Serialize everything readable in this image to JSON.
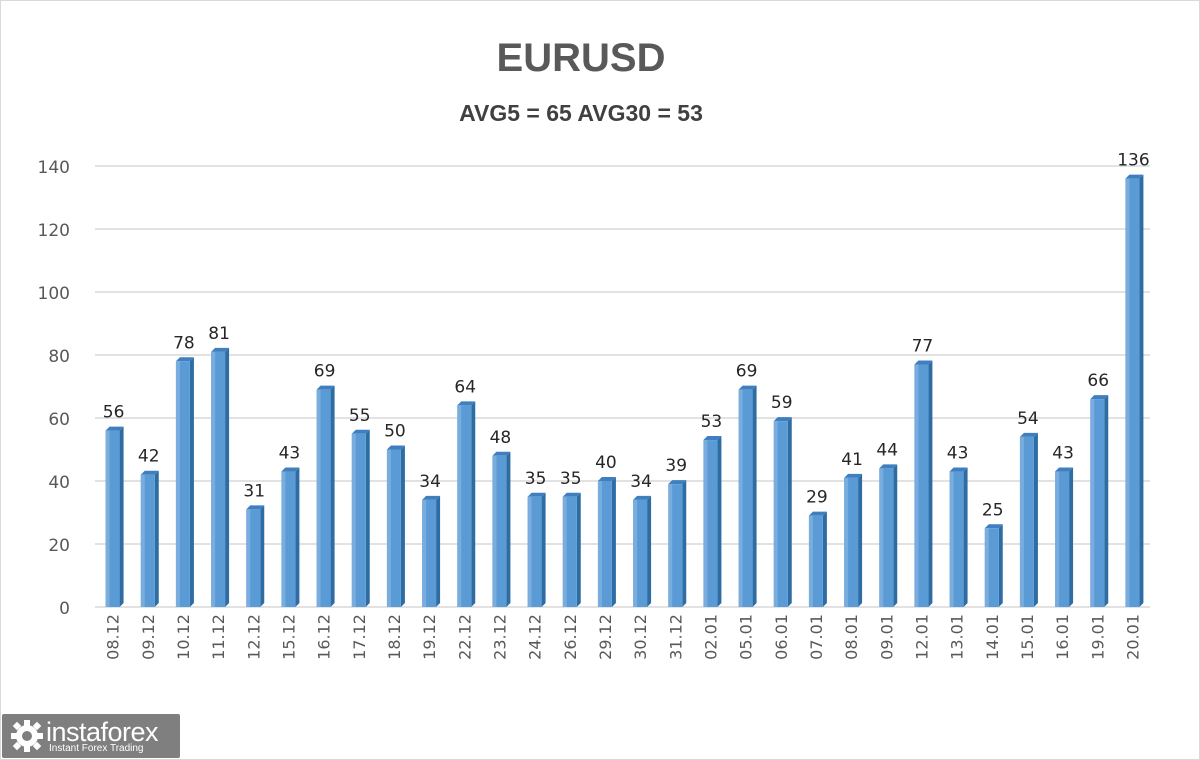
{
  "chart_data": {
    "type": "bar",
    "title": "EURUSD",
    "subtitle": "AVG5 = 65 AVG30 = 53",
    "categories": [
      "08.12",
      "09.12",
      "10.12",
      "11.12",
      "12.12",
      "15.12",
      "16.12",
      "17.12",
      "18.12",
      "19.12",
      "22.12",
      "23.12",
      "24.12",
      "26.12",
      "29.12",
      "30.12",
      "31.12",
      "02.01",
      "05.01",
      "06.01",
      "07.01",
      "08.01",
      "09.01",
      "12.01",
      "13.01",
      "14.01",
      "15.01",
      "16.01",
      "19.01",
      "20.01"
    ],
    "values": [
      56,
      42,
      78,
      81,
      31,
      43,
      69,
      55,
      50,
      34,
      64,
      48,
      35,
      35,
      40,
      34,
      39,
      53,
      69,
      59,
      29,
      41,
      44,
      77,
      43,
      25,
      54,
      43,
      66,
      136
    ],
    "ylim": [
      0,
      140
    ],
    "yticks": [
      0,
      20,
      40,
      60,
      80,
      100,
      120,
      140
    ],
    "xlabel": "",
    "ylabel": "",
    "grid": true,
    "legend": "none",
    "bar_color": "#5b9bd5",
    "bar_shadow_color": "#2e6da4",
    "grid_color": "#d9d9d9"
  },
  "logo": {
    "name": "instaforex",
    "tagline": "Instant Forex Trading"
  }
}
